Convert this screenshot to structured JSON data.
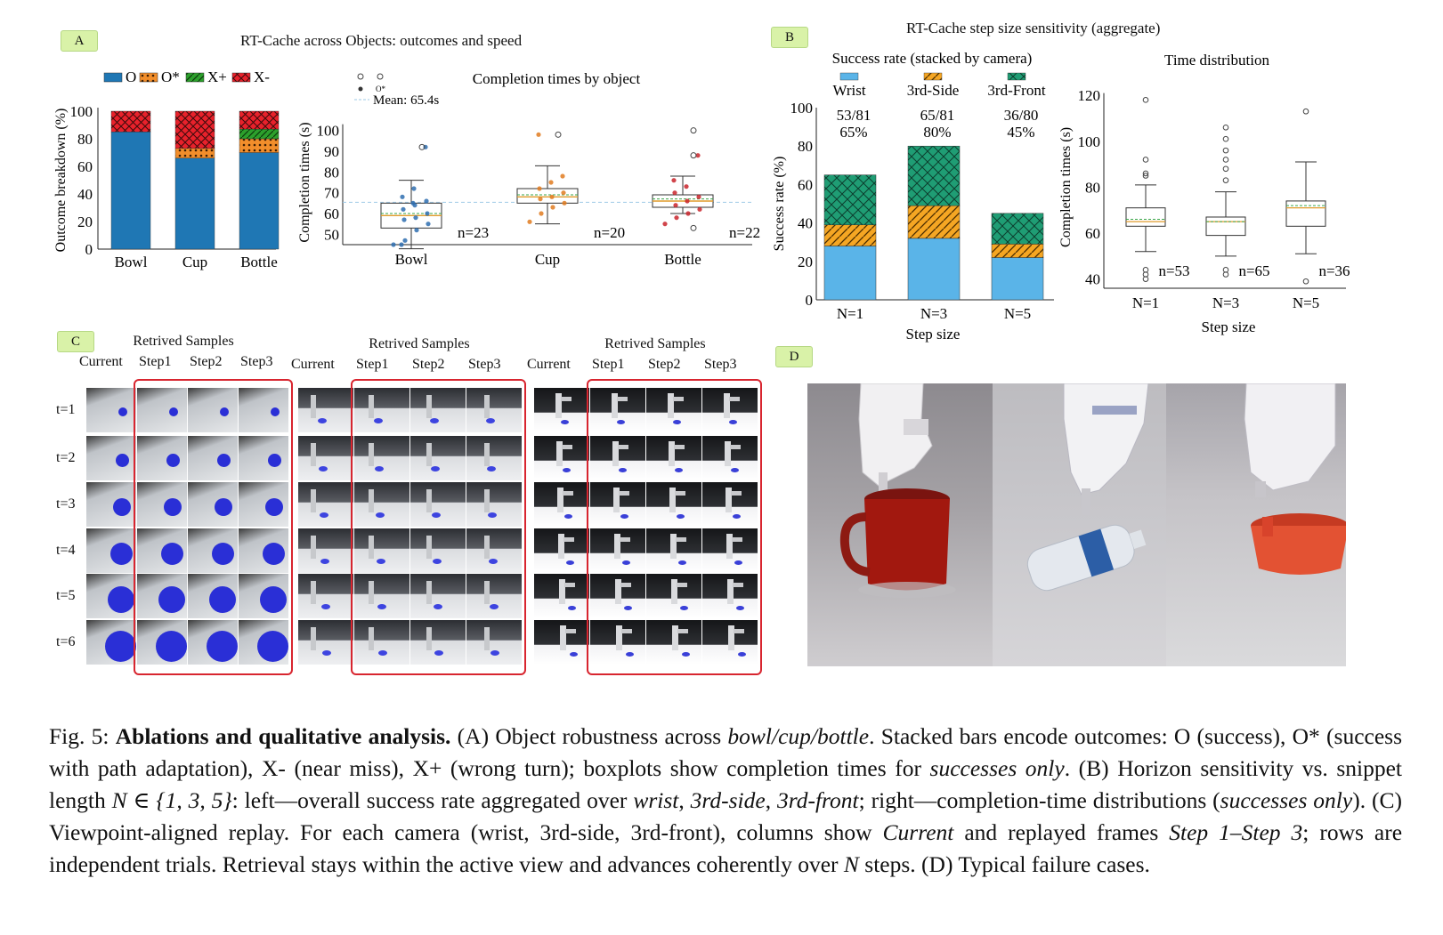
{
  "panelA": {
    "tag": "A",
    "title": "RT-Cache across Objects: outcomes and speed",
    "legend": [
      {
        "label": "O",
        "color": "#1f77b4",
        "pattern": "solid"
      },
      {
        "label": "O*",
        "color": "#f28e2b",
        "pattern": "dots"
      },
      {
        "label": "X+",
        "color": "#2ca02c",
        "pattern": "hatch"
      },
      {
        "label": "X-",
        "color": "#d62728",
        "pattern": "cross"
      }
    ],
    "boxTitle": "Completion times by object",
    "boxLegend": {
      "mean": "Mean: 65.4s",
      "star": "O*"
    }
  },
  "panelB": {
    "tag": "B",
    "title": "RT-Cache step size sensitivity (aggregate)",
    "leftTitle": "Success rate (stacked by camera)",
    "rightTitle": "Time distribution",
    "legend": [
      {
        "label": "Wrist",
        "color": "#5ab4e8"
      },
      {
        "label": "3rd-Side",
        "color": "#f5a623"
      },
      {
        "label": "3rd-Front",
        "color": "#1f9d74"
      }
    ]
  },
  "panelC": {
    "tag": "C",
    "groups": [
      {
        "retrieved": "Retrived Samples",
        "cols": [
          "Current",
          "Step1",
          "Step2",
          "Step3"
        ]
      },
      {
        "retrieved": "Retrived Samples",
        "cols": [
          "Current",
          "Step1",
          "Step2",
          "Step3"
        ]
      },
      {
        "retrieved": "Retrived Samples",
        "cols": [
          "Current",
          "Step1",
          "Step2",
          "Step3"
        ]
      }
    ],
    "rows": [
      "t=1",
      "t=2",
      "t=3",
      "t=4",
      "t=5",
      "t=6"
    ]
  },
  "panelD": {
    "tag": "D"
  },
  "caption": {
    "fig": "Fig. 5:",
    "bold": "Ablations and qualitative analysis.",
    "p1": " (A) Object robustness across ",
    "i1": "bowl/cup/bottle",
    "p2": ". Stacked bars encode outcomes: O (success), O* (success with path adaptation), X- (near miss), X+ (wrong turn); boxplots show completion times for ",
    "i2": "successes only",
    "p3": ". (B) Horizon sensitivity vs. snippet length ",
    "math": "N ∈ {1, 3, 5}",
    "p4": ": left—overall success rate aggregated over ",
    "i3": "wrist",
    "p5": ", ",
    "i4": "3rd-side",
    "p6": ", ",
    "i5": "3rd-front",
    "p7": "; right—completion-time distributions (",
    "i6": "successes only",
    "p8": "). (C) Viewpoint-aligned replay. For each camera (wrist, 3rd-side, 3rd-front), columns show ",
    "i7": "Current",
    "p9": " and replayed frames ",
    "i8": "Step 1–Step 3",
    "p10": "; rows are independent trials. Retrieval stays within the active view and advances coherently over ",
    "i9": "N",
    "p11": " steps. (D) Typical failure cases."
  },
  "chart_data": [
    {
      "id": "A-left",
      "type": "bar",
      "stacked": true,
      "title": "",
      "ylabel": "Outcome breakdown (%)",
      "ylim": [
        0,
        100
      ],
      "yticks": [
        0,
        20,
        40,
        60,
        80,
        100
      ],
      "categories": [
        "Bowl",
        "Cup",
        "Bottle"
      ],
      "series": [
        {
          "name": "O",
          "values": [
            85,
            66,
            70
          ]
        },
        {
          "name": "O*",
          "values": [
            0,
            7,
            10
          ]
        },
        {
          "name": "X+",
          "values": [
            0,
            0,
            7
          ]
        },
        {
          "name": "X-",
          "values": [
            15,
            27,
            13
          ]
        }
      ]
    },
    {
      "id": "A-right",
      "type": "box",
      "title": "Completion times by object",
      "ylabel": "Completion times (s)",
      "yticks": [
        50,
        60,
        70,
        80,
        90,
        100
      ],
      "categories": [
        "Bowl",
        "Cup",
        "Bottle"
      ],
      "mean_line": 65.4,
      "counts": [
        "n=23",
        "n=20",
        "n=22"
      ],
      "boxes": [
        {
          "min": 43,
          "q1": 53,
          "median": 59,
          "mean": 60,
          "q3": 65,
          "max": 76
        },
        {
          "min": 55,
          "q1": 65,
          "median": 68,
          "mean": 69,
          "q3": 72,
          "max": 83
        },
        {
          "min": 60,
          "q1": 63,
          "median": 66,
          "mean": 67,
          "q3": 69,
          "max": 78
        }
      ],
      "points": [
        [
          45,
          47,
          52,
          55,
          57,
          58,
          60,
          62,
          64,
          66,
          68,
          72,
          92,
          45,
          65
        ],
        [
          56,
          60,
          63,
          65,
          67,
          68,
          70,
          72,
          75,
          78,
          98
        ],
        [
          55,
          58,
          60,
          62,
          64,
          66,
          68,
          70,
          73,
          88,
          76
        ]
      ],
      "outliers": [
        [
          92
        ],
        [
          98
        ],
        [
          100,
          88,
          53
        ]
      ]
    },
    {
      "id": "B-left",
      "type": "bar",
      "stacked": true,
      "title": "Success rate (stacked by camera)",
      "ylabel": "Success rate (%)",
      "xlabel": "Step size",
      "ylim": [
        0,
        100
      ],
      "yticks": [
        0,
        20,
        40,
        60,
        80,
        100
      ],
      "categories": [
        "N=1",
        "N=3",
        "N=5"
      ],
      "annotations": [
        [
          "53/81",
          "65%"
        ],
        [
          "65/81",
          "80%"
        ],
        [
          "36/80",
          "45%"
        ]
      ],
      "series": [
        {
          "name": "Wrist",
          "values": [
            28,
            32,
            22
          ]
        },
        {
          "name": "3rd-Side",
          "values": [
            11,
            17,
            7
          ]
        },
        {
          "name": "3rd-Front",
          "values": [
            26,
            31,
            16
          ]
        }
      ]
    },
    {
      "id": "B-right",
      "type": "box",
      "title": "Time distribution",
      "ylabel": "Completion times (s)",
      "xlabel": "Step size",
      "yticks": [
        40,
        60,
        80,
        100,
        120
      ],
      "categories": [
        "N=1",
        "N=3",
        "N=5"
      ],
      "counts": [
        "n=53",
        "n=65",
        "n=36"
      ],
      "boxes": [
        {
          "min": 52,
          "q1": 63,
          "median": 65,
          "mean": 66,
          "q3": 71,
          "max": 81
        },
        {
          "min": 50,
          "q1": 59,
          "median": 65,
          "mean": 65,
          "q3": 67,
          "max": 78
        },
        {
          "min": 51,
          "q1": 63,
          "median": 71,
          "mean": 72,
          "q3": 74,
          "max": 91
        }
      ],
      "outliers": [
        [
          118,
          92,
          86,
          85,
          44,
          42,
          40
        ],
        [
          106,
          101,
          96,
          92,
          88,
          83,
          44,
          42
        ],
        [
          113,
          39
        ]
      ]
    }
  ]
}
